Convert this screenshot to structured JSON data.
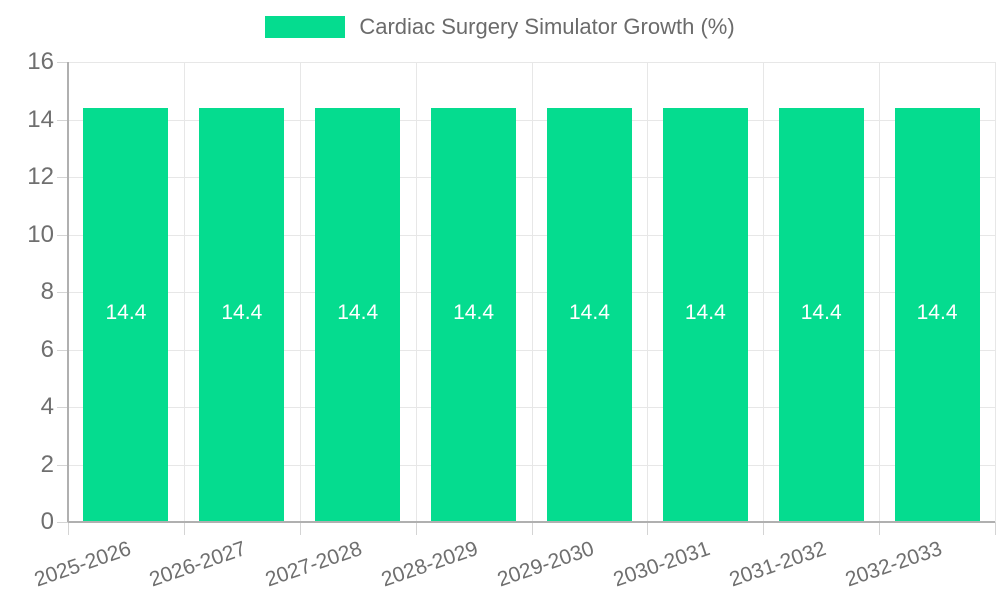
{
  "legend": {
    "label": "Cardiac Surgery Simulator Growth (%)",
    "position": "top"
  },
  "chart_data": {
    "type": "bar",
    "title": "Cardiac Surgery Simulator Growth (%)",
    "categories": [
      "2025-2026",
      "2026-2027",
      "2027-2028",
      "2028-2029",
      "2029-2030",
      "2030-2031",
      "2031-2032",
      "2032-2033"
    ],
    "values": [
      14.4,
      14.4,
      14.4,
      14.4,
      14.4,
      14.4,
      14.4,
      14.4
    ],
    "data_labels": [
      "14.4",
      "14.4",
      "14.4",
      "14.4",
      "14.4",
      "14.4",
      "14.4",
      "14.4"
    ],
    "xlabel": "",
    "ylabel": "",
    "ylim": [
      0,
      16
    ],
    "yticks": [
      0,
      2,
      4,
      6,
      8,
      10,
      12,
      14,
      16
    ],
    "grid": true,
    "legend_position": "top-center",
    "x_label_rotation_deg": -19,
    "colors": {
      "bar": "#05DC8F",
      "bar_label_text": "#FFFFFF",
      "grid": "#E7E7E7",
      "axis": "#B0B0B0",
      "tick": "#D4D4D4",
      "tick_text": "#6F6F6F",
      "legend_text": "#6B6B6B",
      "background": "#FFFFFF"
    }
  }
}
